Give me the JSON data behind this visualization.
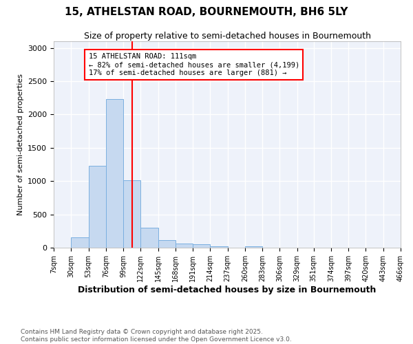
{
  "title1": "15, ATHELSTAN ROAD, BOURNEMOUTH, BH6 5LY",
  "title2": "Size of property relative to semi-detached houses in Bournemouth",
  "xlabel": "Distribution of semi-detached houses by size in Bournemouth",
  "ylabel": "Number of semi-detached properties",
  "bin_edges": [
    7,
    30,
    53,
    76,
    99,
    122,
    145,
    168,
    191,
    214,
    237,
    260,
    283,
    306,
    329,
    351,
    374,
    397,
    420,
    443,
    466
  ],
  "bar_heights": [
    0,
    150,
    1230,
    2230,
    1010,
    300,
    110,
    60,
    50,
    25,
    0,
    20,
    0,
    0,
    0,
    0,
    0,
    0,
    0,
    0
  ],
  "bar_facecolor": "#c6d9f0",
  "bar_edgecolor": "#7aafe0",
  "background_color": "#ffffff",
  "plot_bg_color": "#eef2fa",
  "grid_color": "#ffffff",
  "vline_x": 111,
  "vline_color": "red",
  "annotation_box_color": "red",
  "annotation_text": "15 ATHELSTAN ROAD: 111sqm\n← 82% of semi-detached houses are smaller (4,199)\n17% of semi-detached houses are larger (881) →",
  "ylim": [
    0,
    3100
  ],
  "footnote": "Contains HM Land Registry data © Crown copyright and database right 2025.\nContains public sector information licensed under the Open Government Licence v3.0.",
  "tick_labels": [
    "7sqm",
    "30sqm",
    "53sqm",
    "76sqm",
    "99sqm",
    "122sqm",
    "145sqm",
    "168sqm",
    "191sqm",
    "214sqm",
    "237sqm",
    "260sqm",
    "283sqm",
    "306sqm",
    "329sqm",
    "351sqm",
    "374sqm",
    "397sqm",
    "420sqm",
    "443sqm",
    "466sqm"
  ],
  "yticks": [
    0,
    500,
    1000,
    1500,
    2000,
    2500,
    3000
  ]
}
